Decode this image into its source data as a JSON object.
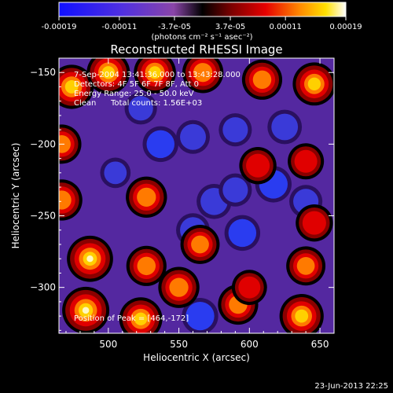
{
  "chart_data": {
    "type": "heatmap",
    "title": "Reconstructed RHESSI Image",
    "xlabel": "Heliocentric X (arcsec)",
    "ylabel": "Heliocentric Y (arcsec)",
    "xlim": [
      465,
      660
    ],
    "ylim": [
      -332,
      -140
    ],
    "x_ticks": [
      500,
      550,
      600,
      650
    ],
    "y_ticks": [
      -150,
      -200,
      -250,
      -300
    ],
    "grid": false,
    "colorbar": {
      "label_units": "(photons cm⁻² s⁻¹ asec⁻²)",
      "range": [
        -0.00019,
        0.00019
      ],
      "tick_labels": [
        "-0.00019",
        "-0.00011",
        "-3.7e-05",
        "3.7e-05",
        "0.00011",
        "0.00019"
      ],
      "tick_values": [
        -0.00019,
        -0.00011,
        -3.7e-05,
        3.7e-05,
        0.00011,
        0.00019
      ]
    },
    "annotations": {
      "time": "7-Sep-2004 13:41:36.000 to 13:43:28.000",
      "detectors": "Detectors: 4F 5F 6F 7F 8F, Att 0",
      "energy": "Energy Range: 25.0 - 50.0 keV",
      "clean": "Clean",
      "counts": "Total counts: 1.56E+03",
      "peak": "Position of Peak = [464,-172]"
    },
    "peak_position": [
      464,
      -172
    ],
    "sources": [
      {
        "x": 474,
        "y": -160,
        "value": 0.00016
      },
      {
        "x": 500,
        "y": -150,
        "value": 0.00015
      },
      {
        "x": 533,
        "y": -150,
        "value": 0.00014
      },
      {
        "x": 567,
        "y": -150,
        "value": 0.00013
      },
      {
        "x": 609,
        "y": -155,
        "value": 0.00012
      },
      {
        "x": 646,
        "y": -158,
        "value": 0.00015
      },
      {
        "x": 467,
        "y": -200,
        "value": 0.00011
      },
      {
        "x": 467,
        "y": -239,
        "value": 0.00013
      },
      {
        "x": 527,
        "y": -237,
        "value": 0.00013
      },
      {
        "x": 487,
        "y": -280,
        "value": 0.00018
      },
      {
        "x": 484,
        "y": -316,
        "value": 0.00019
      },
      {
        "x": 527,
        "y": -285,
        "value": 0.00012
      },
      {
        "x": 523,
        "y": -322,
        "value": 0.00015
      },
      {
        "x": 550,
        "y": -300,
        "value": 0.00013
      },
      {
        "x": 565,
        "y": -270,
        "value": 0.00011
      },
      {
        "x": 592,
        "y": -312,
        "value": 0.00012
      },
      {
        "x": 637,
        "y": -320,
        "value": 0.00016
      },
      {
        "x": 640,
        "y": -285,
        "value": 0.00011
      },
      {
        "x": 646,
        "y": -255,
        "value": 9e-05
      },
      {
        "x": 606,
        "y": -215,
        "value": 9e-05
      },
      {
        "x": 640,
        "y": -212,
        "value": 8e-05
      },
      {
        "x": 600,
        "y": -300,
        "value": 7e-05
      }
    ],
    "negative_regions": [
      {
        "x": 523,
        "y": -175,
        "value": -0.00011
      },
      {
        "x": 537,
        "y": -200,
        "value": -0.00016
      },
      {
        "x": 560,
        "y": -195,
        "value": -0.00013
      },
      {
        "x": 590,
        "y": -190,
        "value": -0.00012
      },
      {
        "x": 617,
        "y": -228,
        "value": -0.00017
      },
      {
        "x": 625,
        "y": -188,
        "value": -0.00014
      },
      {
        "x": 575,
        "y": -240,
        "value": -0.00015
      },
      {
        "x": 595,
        "y": -262,
        "value": -0.00016
      },
      {
        "x": 560,
        "y": -260,
        "value": -0.00013
      },
      {
        "x": 565,
        "y": -320,
        "value": -0.00017
      },
      {
        "x": 590,
        "y": -232,
        "value": -0.00012
      },
      {
        "x": 505,
        "y": -220,
        "value": -8e-05
      },
      {
        "x": 640,
        "y": -240,
        "value": -0.00012
      }
    ]
  },
  "footer": {
    "timestamp": "23-Jun-2013 22:25"
  },
  "colors": {
    "background": "#000000",
    "text": "#ffffff"
  }
}
